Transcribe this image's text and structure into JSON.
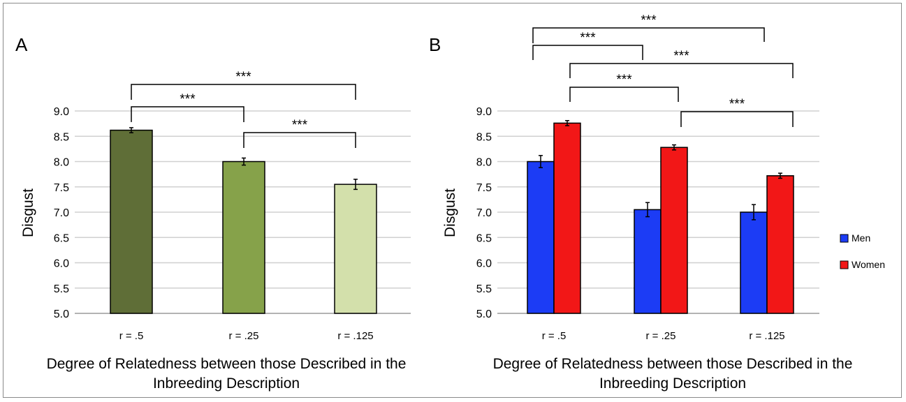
{
  "chart_data": [
    {
      "panel_label": "A",
      "type": "bar",
      "categories": [
        "r = .5",
        "r = .25",
        "r = .125"
      ],
      "series": [
        {
          "values": [
            8.62,
            8.0,
            7.55
          ],
          "errors": [
            0.05,
            0.07,
            0.1
          ],
          "colors": [
            "#5f6e37",
            "#86a24a",
            "#d3e0ab"
          ]
        }
      ],
      "ylabel": "Disgust",
      "xlabel": "Degree of Relatedness between those Described in the Inbreeding Description",
      "ylim": [
        5.0,
        9.0
      ],
      "yticks": [
        "5.0",
        "5.5",
        "6.0",
        "6.5",
        "7.0",
        "7.5",
        "8.0",
        "8.5",
        "9.0"
      ],
      "grid": true,
      "significance": [
        {
          "from": 0,
          "to": 1,
          "label": "***"
        },
        {
          "from": 1,
          "to": 2,
          "label": "***"
        },
        {
          "from": 0,
          "to": 2,
          "label": "***"
        }
      ]
    },
    {
      "panel_label": "B",
      "type": "bar",
      "categories": [
        "r = .5",
        "r = .25",
        "r = .125"
      ],
      "series": [
        {
          "name": "Men",
          "color": "#1c3cf5",
          "values": [
            8.0,
            7.05,
            7.0
          ],
          "errors": [
            0.12,
            0.14,
            0.15
          ]
        },
        {
          "name": "Women",
          "color": "#f21717",
          "values": [
            8.76,
            8.28,
            7.72
          ],
          "errors": [
            0.05,
            0.05,
            0.05
          ]
        }
      ],
      "ylabel": "Disgust",
      "xlabel": "Degree of Relatedness between those Described in the Inbreeding Description",
      "ylim": [
        5.0,
        9.0
      ],
      "yticks": [
        "5.0",
        "5.5",
        "6.0",
        "6.5",
        "7.0",
        "7.5",
        "8.0",
        "8.5",
        "9.0"
      ],
      "grid": true,
      "legend": "right",
      "significance": [
        {
          "from": [
            0,
            0
          ],
          "to": [
            1,
            0
          ],
          "label": "***"
        },
        {
          "from": [
            0,
            0
          ],
          "to": [
            2,
            0
          ],
          "label": "***"
        },
        {
          "from": [
            0,
            1
          ],
          "to": [
            1,
            1
          ],
          "label": "***"
        },
        {
          "from": [
            0,
            1
          ],
          "to": [
            2,
            1
          ],
          "label": "***"
        },
        {
          "from": [
            1,
            1
          ],
          "to": [
            2,
            1
          ],
          "label": "***"
        }
      ]
    }
  ],
  "xlabel_lines": [
    "Degree of Relatedness between those Described in the",
    "Inbreeding Description"
  ]
}
